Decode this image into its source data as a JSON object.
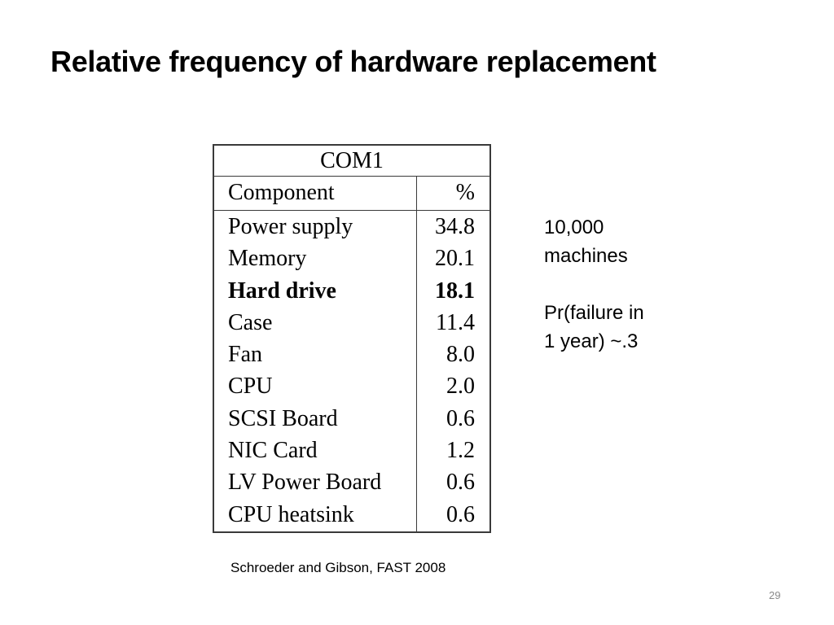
{
  "slide": {
    "title": "Relative frequency of hardware replacement",
    "page_number": "29"
  },
  "table": {
    "caption": "COM1",
    "headers": {
      "component": "Component",
      "percent": "%"
    },
    "rows": [
      {
        "component": "Power supply",
        "percent": "34.8"
      },
      {
        "component": "Memory",
        "percent": "20.1"
      },
      {
        "component": "Hard drive",
        "percent": "18.1",
        "emphasis": "bold"
      },
      {
        "component": "Case",
        "percent": "11.4"
      },
      {
        "component": "Fan",
        "percent": "8.0"
      },
      {
        "component": "CPU",
        "percent": "2.0"
      },
      {
        "component": "SCSI Board",
        "percent": "0.6"
      },
      {
        "component": "NIC Card",
        "percent": "1.2"
      },
      {
        "component": "LV Power Board",
        "percent": "0.6"
      },
      {
        "component": "CPU heatsink",
        "percent": "0.6"
      }
    ]
  },
  "notes": {
    "machines_line1": "10,000",
    "machines_line2": "machines",
    "failure_line1": "Pr(failure in",
    "failure_line2": "1 year) ~.3"
  },
  "citation": "Schroeder and Gibson, FAST 2008"
}
